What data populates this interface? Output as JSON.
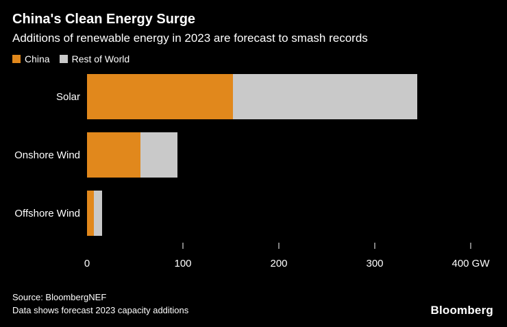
{
  "header": {
    "title": "China's Clean Energy Surge",
    "subtitle": "Additions of renewable energy in 2023 are forecast to smash records"
  },
  "colors": {
    "china": "#e1881c",
    "rest_of_world": "#c9c9c9",
    "background": "#000000",
    "text": "#ffffff"
  },
  "legend": [
    {
      "label": "China",
      "color": "#e1881c"
    },
    {
      "label": "Rest of World",
      "color": "#c9c9c9"
    }
  ],
  "chart_data": {
    "type": "bar",
    "orientation": "horizontal",
    "stacked": true,
    "title": "China's Clean Energy Surge",
    "subtitle": "Additions of renewable energy in 2023 are forecast to smash records",
    "categories": [
      "Solar",
      "Onshore Wind",
      "Offshore Wind"
    ],
    "series": [
      {
        "name": "China",
        "color": "#e1881c",
        "values": [
          152,
          56,
          7
        ]
      },
      {
        "name": "Rest of World",
        "color": "#c9c9c9",
        "values": [
          192,
          38,
          9
        ]
      }
    ],
    "xlim": [
      0,
      400
    ],
    "x_ticks": [
      0,
      100,
      200,
      300,
      400
    ],
    "x_unit": "GW",
    "grid": false,
    "legend_position": "top-left"
  },
  "footer": {
    "source_line1": "Source: BloombergNEF",
    "source_line2": "Data shows forecast 2023 capacity additions",
    "brand": "Bloomberg"
  }
}
